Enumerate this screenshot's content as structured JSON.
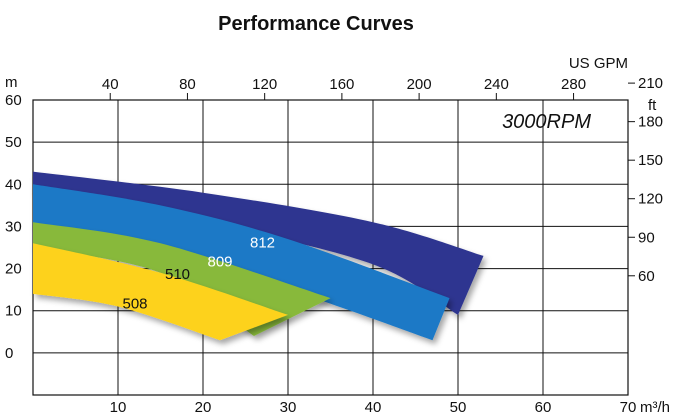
{
  "chart_data": {
    "type": "area",
    "title": "Performance Curves",
    "annotation": "3000RPM",
    "grid": true,
    "x_axis_bottom": {
      "unit": "m³/h",
      "range": [
        0,
        70
      ],
      "ticks": [
        "10",
        "20",
        "30",
        "40",
        "50",
        "60",
        "70"
      ]
    },
    "x_axis_top": {
      "unit": "US GPM",
      "ticks": [
        "40",
        "80",
        "120",
        "160",
        "200",
        "240",
        "280"
      ]
    },
    "y_axis_left": {
      "unit": "m",
      "range": [
        -10,
        60
      ],
      "ticks": [
        "60",
        "50",
        "40",
        "30",
        "20",
        "10",
        "0"
      ]
    },
    "y_axis_right": {
      "unit": "ft",
      "ticks": [
        "210",
        "180",
        "150",
        "120",
        "90",
        "60"
      ]
    },
    "series": [
      {
        "name": "812",
        "color": "#2d3590",
        "upper": {
          "x": [
            0,
            20,
            40,
            53
          ],
          "y": [
            43,
            38,
            31,
            23
          ]
        },
        "lower": {
          "x": [
            0,
            20,
            40,
            50
          ],
          "y": [
            38,
            31,
            21,
            9
          ]
        }
      },
      {
        "name": "809",
        "color": "#1c79c6",
        "upper": {
          "x": [
            0,
            15,
            30,
            49
          ],
          "y": [
            40,
            35,
            27,
            13
          ]
        },
        "lower": {
          "x": [
            0,
            15,
            30,
            47
          ],
          "y": [
            30,
            23,
            15,
            3
          ]
        }
      },
      {
        "name": "510",
        "color": "#88b93a",
        "upper": {
          "x": [
            0,
            15,
            35
          ],
          "y": [
            31,
            26,
            13
          ]
        },
        "lower": {
          "x": [
            0,
            15,
            26
          ],
          "y": [
            25,
            19,
            4
          ]
        }
      },
      {
        "name": "508",
        "color": "#fdd21f",
        "upper": {
          "x": [
            0,
            15,
            30
          ],
          "y": [
            26,
            19,
            9
          ]
        },
        "lower": {
          "x": [
            0,
            10,
            22
          ],
          "y": [
            14,
            11,
            3
          ]
        }
      }
    ],
    "label_positions": [
      {
        "series": "812",
        "x": 27,
        "y": 25,
        "color": "#ffffff"
      },
      {
        "series": "809",
        "x": 22,
        "y": 20.5,
        "color": "#ffffff"
      },
      {
        "series": "510",
        "x": 17,
        "y": 17.5,
        "color": "#111111"
      },
      {
        "series": "508",
        "x": 12,
        "y": 10.5,
        "color": "#111111"
      }
    ]
  }
}
